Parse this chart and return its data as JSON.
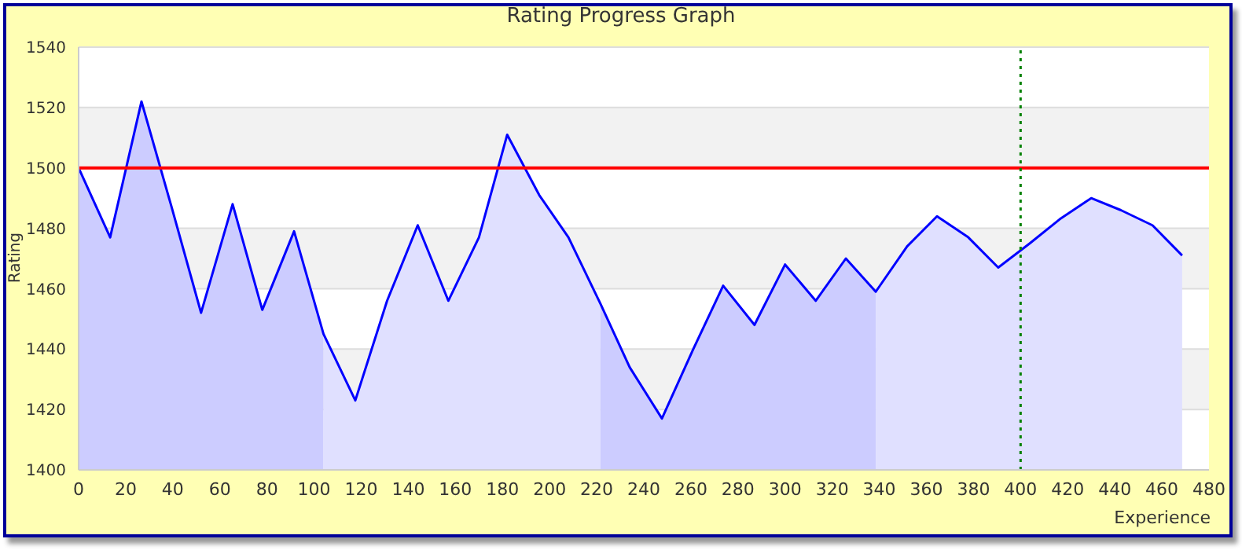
{
  "chart_data": {
    "type": "line",
    "title": "Rating Progress Graph",
    "xlabel": "Experience",
    "ylabel": "Rating",
    "x": [
      0,
      13.4,
      26.7,
      39.5,
      52,
      65.4,
      78,
      91.5,
      104,
      117.5,
      131,
      144,
      157,
      170,
      182,
      195.6,
      208,
      221.6,
      234,
      247.7,
      261,
      273.7,
      287,
      300,
      313,
      325.8,
      338.5,
      351.8,
      364.5,
      377.8,
      390.5,
      403.9,
      416.6,
      430,
      442.6,
      456,
      468.6
    ],
    "series": [
      {
        "color": "#0000ff",
        "values": [
          1500,
          1477,
          1522,
          1487,
          1452,
          1488,
          1453,
          1479,
          1445,
          1423,
          1456,
          1481,
          1456,
          1477,
          1511,
          1491,
          1477,
          1455,
          1434,
          1417,
          1440,
          1461,
          1448,
          1468,
          1456,
          1470,
          1459,
          1474,
          1484,
          1477,
          1467,
          1475,
          1483,
          1490,
          1486,
          1481,
          1471
        ]
      },
      {
        "type": "area",
        "color": "#ccccff",
        "values": [
          1500,
          1477,
          1522,
          1487,
          1452,
          1488,
          1453,
          1479,
          1445,
          null,
          null,
          null,
          null,
          null,
          null,
          null,
          null,
          null,
          null,
          null,
          null,
          null,
          null,
          null,
          null,
          null,
          null,
          null,
          null,
          null,
          null,
          null,
          null,
          null,
          null,
          null,
          null
        ]
      },
      {
        "type": "area",
        "color": "#e0e0ff",
        "values": [
          null,
          null,
          null,
          null,
          null,
          null,
          null,
          null,
          1445,
          1423,
          1456,
          1481,
          1456,
          1477,
          1511,
          1491,
          1477,
          1455,
          null,
          null,
          null,
          null,
          null,
          null,
          null,
          null,
          null,
          null,
          null,
          null,
          null,
          null,
          null,
          null,
          null,
          null,
          null
        ]
      },
      {
        "type": "area",
        "color": "#ccccff",
        "values": [
          null,
          null,
          null,
          null,
          null,
          null,
          null,
          null,
          null,
          null,
          null,
          null,
          null,
          null,
          null,
          null,
          null,
          1455,
          1434,
          1417,
          1440,
          1461,
          1448,
          1468,
          1456,
          1470,
          1459,
          null,
          null,
          null,
          null,
          null,
          null,
          null,
          null,
          null,
          null
        ]
      },
      {
        "type": "area",
        "color": "#e0e0ff",
        "values": [
          null,
          null,
          null,
          null,
          null,
          null,
          null,
          null,
          null,
          null,
          null,
          null,
          null,
          null,
          null,
          null,
          null,
          null,
          null,
          null,
          null,
          null,
          null,
          null,
          null,
          null,
          1459,
          1474,
          1484,
          1477,
          1467,
          1475,
          1483,
          1490,
          1486,
          1481,
          1471
        ]
      }
    ],
    "xlim": [
      0,
      480
    ],
    "xticks": [
      0,
      20,
      40,
      60,
      80,
      100,
      120,
      140,
      160,
      180,
      200,
      220,
      240,
      260,
      280,
      300,
      320,
      340,
      360,
      380,
      400,
      420,
      440,
      460,
      480
    ],
    "ylim": [
      1400,
      1540
    ],
    "yticks": [
      1400,
      1420,
      1440,
      1460,
      1480,
      1500,
      1520,
      1540
    ],
    "grid": "y",
    "legend": false,
    "marker": "none",
    "ref_lines": [
      {
        "axis": "y",
        "value": 1500,
        "color": "#ff0000",
        "line_style": "solid"
      },
      {
        "axis": "x",
        "value": 400,
        "color": "#008000",
        "line_style": "dotted"
      }
    ]
  }
}
